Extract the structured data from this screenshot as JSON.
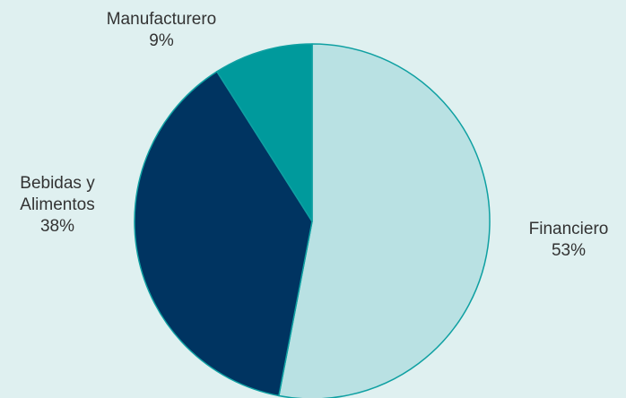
{
  "chart_data": {
    "type": "pie",
    "slices": [
      {
        "name": "Financiero",
        "label_lines": [
          "Financiero"
        ],
        "value": 53,
        "value_label": "53%",
        "color": "#b9e1e3"
      },
      {
        "name": "Bebidas y Alimentos",
        "label_lines": [
          "Bebidas y",
          "Alimentos"
        ],
        "value": 38,
        "value_label": "38%",
        "color": "#003461"
      },
      {
        "name": "Manufacturero",
        "label_lines": [
          "Manufacturero"
        ],
        "value": 9,
        "value_label": "9%",
        "color": "#009a9c"
      }
    ],
    "start_angle_deg": 0,
    "direction": "clockwise",
    "legend": "none",
    "edge_color": "#0fa0a2",
    "background": "#dff0f0"
  }
}
